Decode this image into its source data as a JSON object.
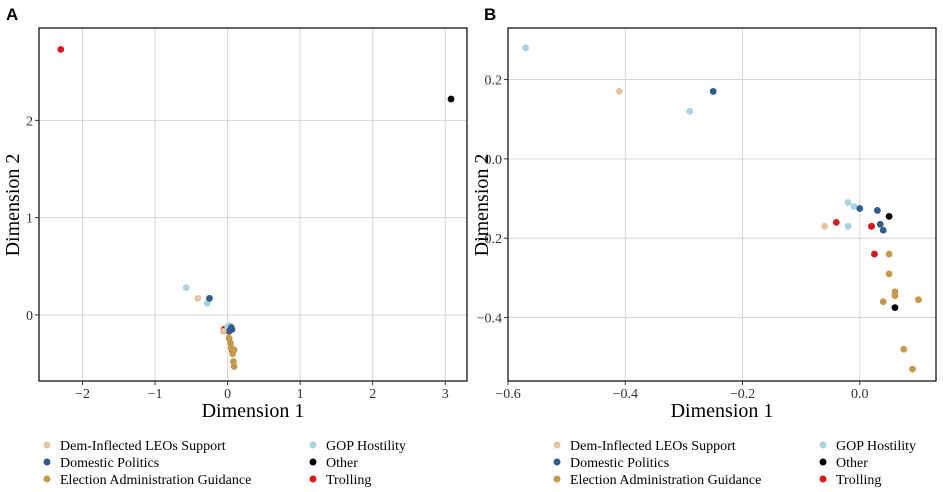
{
  "colors": {
    "Dem-Inflected LEOs Support": "#e6c4a1",
    "Domestic Politics": "#2f5e8c",
    "Election Administration Guidance": "#c59a4e",
    "GOP Hostility": "#a9d4df",
    "Other": "#000000",
    "Trolling": "#d7191c"
  },
  "legend_order": [
    "Dem-Inflected LEOs Support",
    "GOP Hostility",
    "Domestic Politics",
    "Other",
    "Election Administration Guidance",
    "Trolling"
  ],
  "chart_data": [
    {
      "type": "scatter",
      "panel": "A",
      "title": "",
      "xlabel": "Dimension 1",
      "ylabel": "Dimension 2",
      "xlim": [
        -2.6,
        3.3
      ],
      "ylim": [
        -0.68,
        2.95
      ],
      "xticks": [
        -2,
        -1,
        0,
        1,
        2,
        3
      ],
      "yticks": [
        0,
        1,
        2
      ],
      "grid": true,
      "series": [
        {
          "name": "Trolling",
          "points": [
            [
              -2.3,
              2.73
            ],
            [
              -0.05,
              -0.15
            ],
            [
              0.02,
              -0.17
            ]
          ]
        },
        {
          "name": "Other",
          "points": [
            [
              3.08,
              2.22
            ],
            [
              0.05,
              -0.14
            ],
            [
              0.07,
              -0.37
            ]
          ]
        },
        {
          "name": "GOP Hostility",
          "points": [
            [
              -0.57,
              0.28
            ],
            [
              -0.28,
              0.12
            ],
            [
              0.0,
              -0.12
            ],
            [
              0.03,
              -0.11
            ]
          ]
        },
        {
          "name": "Dem-Inflected LEOs Support",
          "points": [
            [
              -0.41,
              0.17
            ],
            [
              -0.06,
              -0.17
            ]
          ]
        },
        {
          "name": "Domestic Politics",
          "points": [
            [
              -0.25,
              0.17
            ],
            [
              0.03,
              -0.16
            ],
            [
              0.05,
              -0.13
            ],
            [
              0.06,
              -0.15
            ]
          ]
        },
        {
          "name": "Election Administration Guidance",
          "points": [
            [
              0.02,
              -0.24
            ],
            [
              0.04,
              -0.29
            ],
            [
              0.05,
              -0.34
            ],
            [
              0.07,
              -0.4
            ],
            [
              0.09,
              -0.36
            ],
            [
              0.08,
              -0.48
            ],
            [
              0.09,
              -0.53
            ]
          ]
        }
      ]
    },
    {
      "type": "scatter",
      "panel": "B",
      "title": "",
      "xlabel": "Dimension 1",
      "ylabel": "Dimension 2",
      "xlim": [
        -0.6,
        0.13
      ],
      "ylim": [
        -0.56,
        0.33
      ],
      "xticks": [
        -0.6,
        -0.4,
        -0.2,
        0.0
      ],
      "xtick_labels": [
        "−0.6",
        "−0.4",
        "−0.2",
        "0.0"
      ],
      "yticks": [
        -0.4,
        -0.2,
        0.0,
        0.2
      ],
      "ytick_labels": [
        "−0.4",
        "−0.2",
        "0.0",
        "0.2"
      ],
      "grid": true,
      "series": [
        {
          "name": "GOP Hostility",
          "points": [
            [
              -0.57,
              0.28
            ],
            [
              -0.29,
              0.12
            ],
            [
              -0.02,
              -0.11
            ],
            [
              -0.01,
              -0.12
            ],
            [
              -0.02,
              -0.17
            ]
          ]
        },
        {
          "name": "Dem-Inflected LEOs Support",
          "points": [
            [
              -0.41,
              0.17
            ],
            [
              -0.06,
              -0.17
            ]
          ]
        },
        {
          "name": "Domestic Politics",
          "points": [
            [
              -0.25,
              0.17
            ],
            [
              0.0,
              -0.125
            ],
            [
              0.03,
              -0.13
            ],
            [
              0.02,
              -0.17
            ],
            [
              0.035,
              -0.165
            ],
            [
              0.04,
              -0.18
            ]
          ]
        },
        {
          "name": "Trolling",
          "points": [
            [
              -0.04,
              -0.16
            ],
            [
              0.02,
              -0.17
            ],
            [
              0.025,
              -0.24
            ]
          ]
        },
        {
          "name": "Other",
          "points": [
            [
              0.05,
              -0.145
            ],
            [
              0.06,
              -0.375
            ]
          ]
        },
        {
          "name": "Election Administration Guidance",
          "points": [
            [
              0.05,
              -0.24
            ],
            [
              0.05,
              -0.29
            ],
            [
              0.06,
              -0.335
            ],
            [
              0.06,
              -0.345
            ],
            [
              0.04,
              -0.36
            ],
            [
              0.1,
              -0.355
            ],
            [
              0.075,
              -0.48
            ],
            [
              0.09,
              -0.53
            ]
          ]
        }
      ]
    }
  ]
}
